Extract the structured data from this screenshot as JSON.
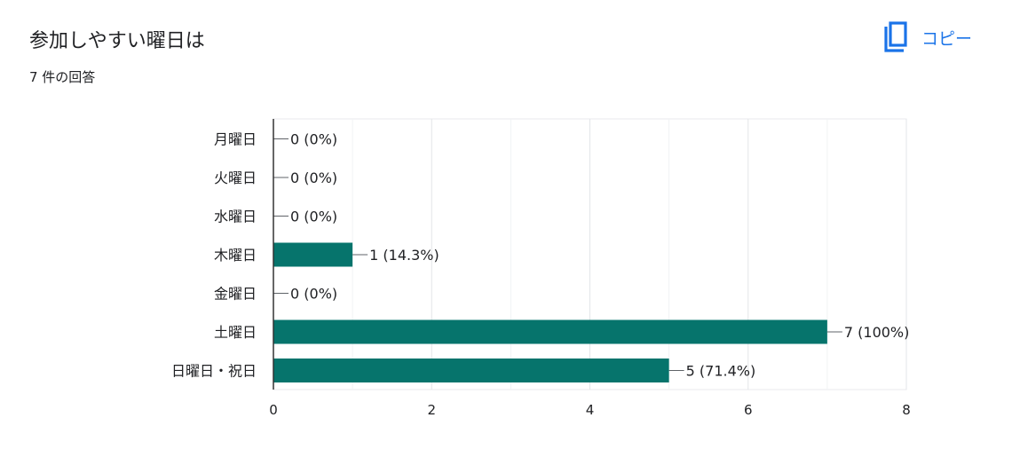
{
  "header": {
    "title": "参加しやすい曜日は",
    "response_count": "7 件の回答",
    "copy_label": "コピー",
    "copy_icon": "copy-icon"
  },
  "colors": {
    "bar": "#06746c",
    "accent": "#1a73e8",
    "grid": "#e8eaed"
  },
  "chart_data": {
    "type": "bar",
    "orientation": "horizontal",
    "title": "",
    "xlabel": "",
    "ylabel": "",
    "categories": [
      "月曜日",
      "火曜日",
      "水曜日",
      "木曜日",
      "金曜日",
      "土曜日",
      "日曜日・祝日"
    ],
    "values": [
      0,
      0,
      0,
      1,
      0,
      7,
      5
    ],
    "data_labels": [
      "0 (0%)",
      "0 (0%)",
      "0 (0%)",
      "1 (14.3%)",
      "0 (0%)",
      "7 (100%)",
      "5 (71.4%)"
    ],
    "xlim": [
      0,
      8
    ],
    "xticks": [
      "0",
      "2",
      "4",
      "6",
      "8"
    ],
    "grid": true,
    "legend": "none"
  }
}
